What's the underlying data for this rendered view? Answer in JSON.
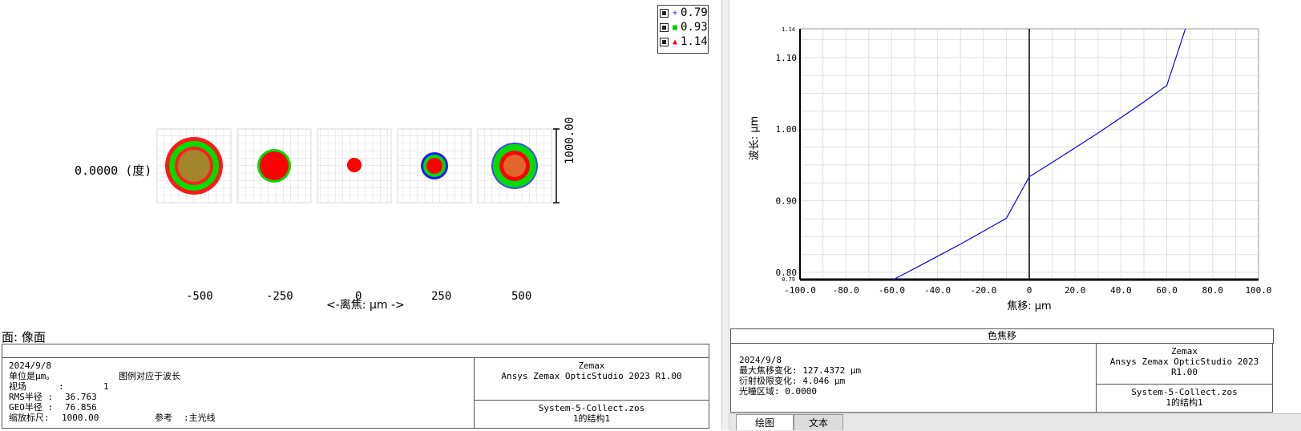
{
  "left": {
    "legend": [
      {
        "symbol": "+",
        "color": "#1a1aff",
        "label": "0.79"
      },
      {
        "symbol": "■",
        "color": "#00cc00",
        "label": "0.93"
      },
      {
        "symbol": "▲",
        "color": "#ff0000",
        "label": "1.14"
      }
    ],
    "field_label": "0.0000 (度)",
    "scale_label": "1000.00",
    "defocus_values": [
      "-500",
      "-250",
      "0",
      "250",
      "500"
    ],
    "defocus_axis_label": "<-离焦: μm ->",
    "surface_label": "面: 像面",
    "info": {
      "date": "2024/9/8",
      "unit": "单位是μm。",
      "legend_note": "图例对应于波长",
      "field_key": "视场",
      "field_colon": ":",
      "field_value": "1",
      "rms_key": "RMS半径 :",
      "rms_value": "36.763",
      "geo_key": "GEO半径 :",
      "geo_value": "76.856",
      "scale_key": "缩放标尺:",
      "scale_value": "1000.00",
      "ref_key": "参考",
      "ref_value": ":主光线"
    },
    "brand": "Zemax",
    "product": "Ansys Zemax OpticStudio 2023 R1.00",
    "file": "System-5-Collect.zos",
    "config": "1的结构1"
  },
  "right": {
    "chart_data": {
      "type": "line",
      "title": "",
      "xlabel": "焦移: μm",
      "ylabel": "波长: μm",
      "xlim": [
        -100.0,
        100.0
      ],
      "ylim": [
        0.79,
        1.14
      ],
      "xticks": [
        "-100.0",
        "-80.0",
        "-60.0",
        "-40.0",
        "-20.0",
        "0",
        "20.0",
        "40.0",
        "60.0",
        "80.0",
        "100.0"
      ],
      "yticks": [
        "0.80",
        "0.90",
        "1.00",
        "1.10"
      ],
      "ytick_top": "1.14",
      "ytick_bottom": "0.79",
      "grid": true,
      "series": [
        {
          "color": "#0000ff",
          "x": [
            -59.3,
            -50,
            -40,
            -30,
            -20,
            -10,
            0,
            10,
            20,
            30,
            40,
            50,
            60,
            68.1
          ],
          "y": [
            0.79,
            0.8055,
            0.8225,
            0.8395,
            0.8575,
            0.8755,
            0.9335,
            0.9535,
            0.974,
            0.9945,
            1.016,
            1.038,
            1.061,
            1.14
          ]
        }
      ]
    },
    "info_title": "色焦移",
    "info": {
      "date": "2024/9/8",
      "max_shift": "最大焦移变化: 127.4372 μm",
      "diff_limit": "衍射极限变化: 4.046 μm",
      "pupil": "光瞳区域: 0.0000"
    },
    "brand": "Zemax",
    "product": "Ansys Zemax OpticStudio 2023 R1.00",
    "file": "System-5-Collect.zos",
    "config": "1的结构1",
    "tabs": [
      "绘图",
      "文本"
    ]
  }
}
